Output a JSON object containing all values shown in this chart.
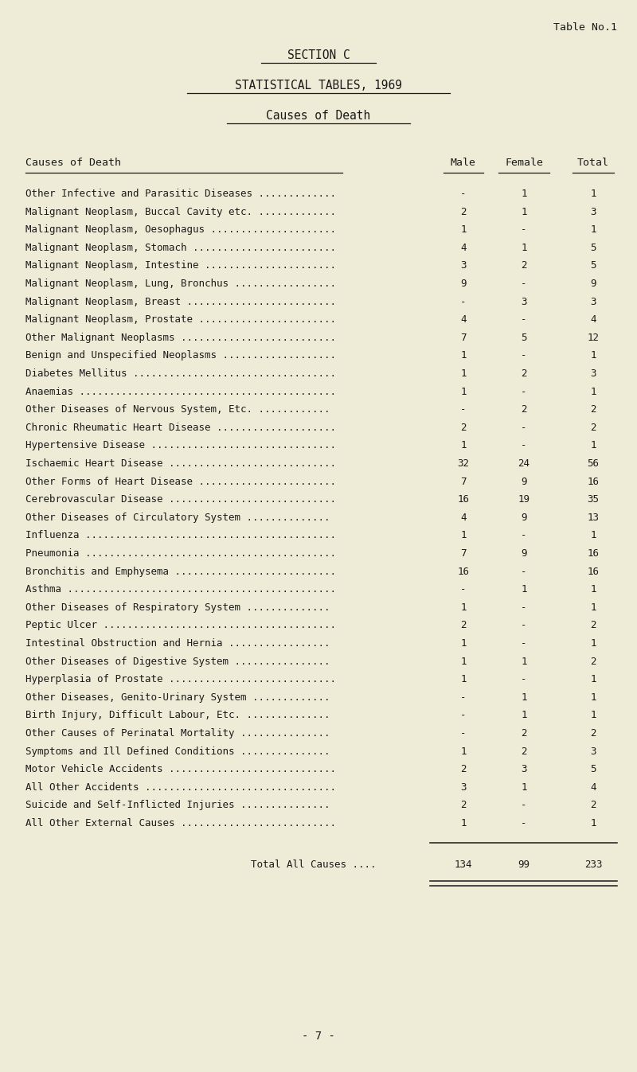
{
  "table_no": "Table No.1",
  "section_title": "SECTION C",
  "subtitle": "STATISTICAL TABLES, 1969",
  "sub_subtitle": "Causes of Death",
  "col_header_cause": "Causes of Death",
  "col_header_male": "Male",
  "col_header_female": "Female",
  "col_header_total": "Total",
  "rows": [
    {
      "cause": "Other Infective and Parasitic Diseases .............",
      "male": "-",
      "female": "1",
      "total": "1"
    },
    {
      "cause": "Malignant Neoplasm, Buccal Cavity etc. .............",
      "male": "2",
      "female": "1",
      "total": "3"
    },
    {
      "cause": "Malignant Neoplasm, Oesophagus .....................",
      "male": "1",
      "female": "-",
      "total": "1"
    },
    {
      "cause": "Malignant Neoplasm, Stomach ........................",
      "male": "4",
      "female": "1",
      "total": "5"
    },
    {
      "cause": "Malignant Neoplasm, Intestine ......................",
      "male": "3",
      "female": "2",
      "total": "5"
    },
    {
      "cause": "Malignant Neoplasm, Lung, Bronchus .................",
      "male": "9",
      "female": "-",
      "total": "9"
    },
    {
      "cause": "Malignant Neoplasm, Breast .........................",
      "male": "-",
      "female": "3",
      "total": "3"
    },
    {
      "cause": "Malignant Neoplasm, Prostate .......................",
      "male": "4",
      "female": "-",
      "total": "4"
    },
    {
      "cause": "Other Malignant Neoplasms ..........................",
      "male": "7",
      "female": "5",
      "total": "12"
    },
    {
      "cause": "Benign and Unspecified Neoplasms ...................",
      "male": "1",
      "female": "-",
      "total": "1"
    },
    {
      "cause": "Diabetes Mellitus ..................................",
      "male": "1",
      "female": "2",
      "total": "3"
    },
    {
      "cause": "Anaemias ...........................................",
      "male": "1",
      "female": "-",
      "total": "1"
    },
    {
      "cause": "Other Diseases of Nervous System, Etc. ............",
      "male": "-",
      "female": "2",
      "total": "2"
    },
    {
      "cause": "Chronic Rheumatic Heart Disease ....................",
      "male": "2",
      "female": "-",
      "total": "2"
    },
    {
      "cause": "Hypertensive Disease ...............................",
      "male": "1",
      "female": "-",
      "total": "1"
    },
    {
      "cause": "Ischaemic Heart Disease ............................",
      "male": "32",
      "female": "24",
      "total": "56"
    },
    {
      "cause": "Other Forms of Heart Disease .......................",
      "male": "7",
      "female": "9",
      "total": "16"
    },
    {
      "cause": "Cerebrovascular Disease ............................",
      "male": "16",
      "female": "19",
      "total": "35"
    },
    {
      "cause": "Other Diseases of Circulatory System ..............",
      "male": "4",
      "female": "9",
      "total": "13"
    },
    {
      "cause": "Influenza ..........................................",
      "male": "1",
      "female": "-",
      "total": "1"
    },
    {
      "cause": "Pneumonia ..........................................",
      "male": "7",
      "female": "9",
      "total": "16"
    },
    {
      "cause": "Bronchitis and Emphysema ...........................",
      "male": "16",
      "female": "-",
      "total": "16"
    },
    {
      "cause": "Asthma .............................................",
      "male": "-",
      "female": "1",
      "total": "1"
    },
    {
      "cause": "Other Diseases of Respiratory System ..............",
      "male": "1",
      "female": "-",
      "total": "1"
    },
    {
      "cause": "Peptic Ulcer .......................................",
      "male": "2",
      "female": "-",
      "total": "2"
    },
    {
      "cause": "Intestinal Obstruction and Hernia .................",
      "male": "1",
      "female": "-",
      "total": "1"
    },
    {
      "cause": "Other Diseases of Digestive System ................",
      "male": "1",
      "female": "1",
      "total": "2"
    },
    {
      "cause": "Hyperplasia of Prostate ............................",
      "male": "1",
      "female": "-",
      "total": "1"
    },
    {
      "cause": "Other Diseases, Genito-Urinary System .............",
      "male": "-",
      "female": "1",
      "total": "1"
    },
    {
      "cause": "Birth Injury, Difficult Labour, Etc. ..............",
      "male": "-",
      "female": "1",
      "total": "1"
    },
    {
      "cause": "Other Causes of Perinatal Mortality ...............",
      "male": "-",
      "female": "2",
      "total": "2"
    },
    {
      "cause": "Symptoms and Ill Defined Conditions ...............",
      "male": "1",
      "female": "2",
      "total": "3"
    },
    {
      "cause": "Motor Vehicle Accidents ............................",
      "male": "2",
      "female": "3",
      "total": "5"
    },
    {
      "cause": "All Other Accidents ................................",
      "male": "3",
      "female": "1",
      "total": "4"
    },
    {
      "cause": "Suicide and Self-Inflicted Injuries ...............",
      "male": "2",
      "female": "-",
      "total": "2"
    },
    {
      "cause": "All Other External Causes ..........................",
      "male": "1",
      "female": "-",
      "total": "1"
    }
  ],
  "total_label": "Total All Causes ....",
  "total_male": "134",
  "total_female": "99",
  "total_total": "233",
  "page_number": "- 7 -",
  "bg_color": "#eeebd6",
  "text_color": "#1a1a1a"
}
